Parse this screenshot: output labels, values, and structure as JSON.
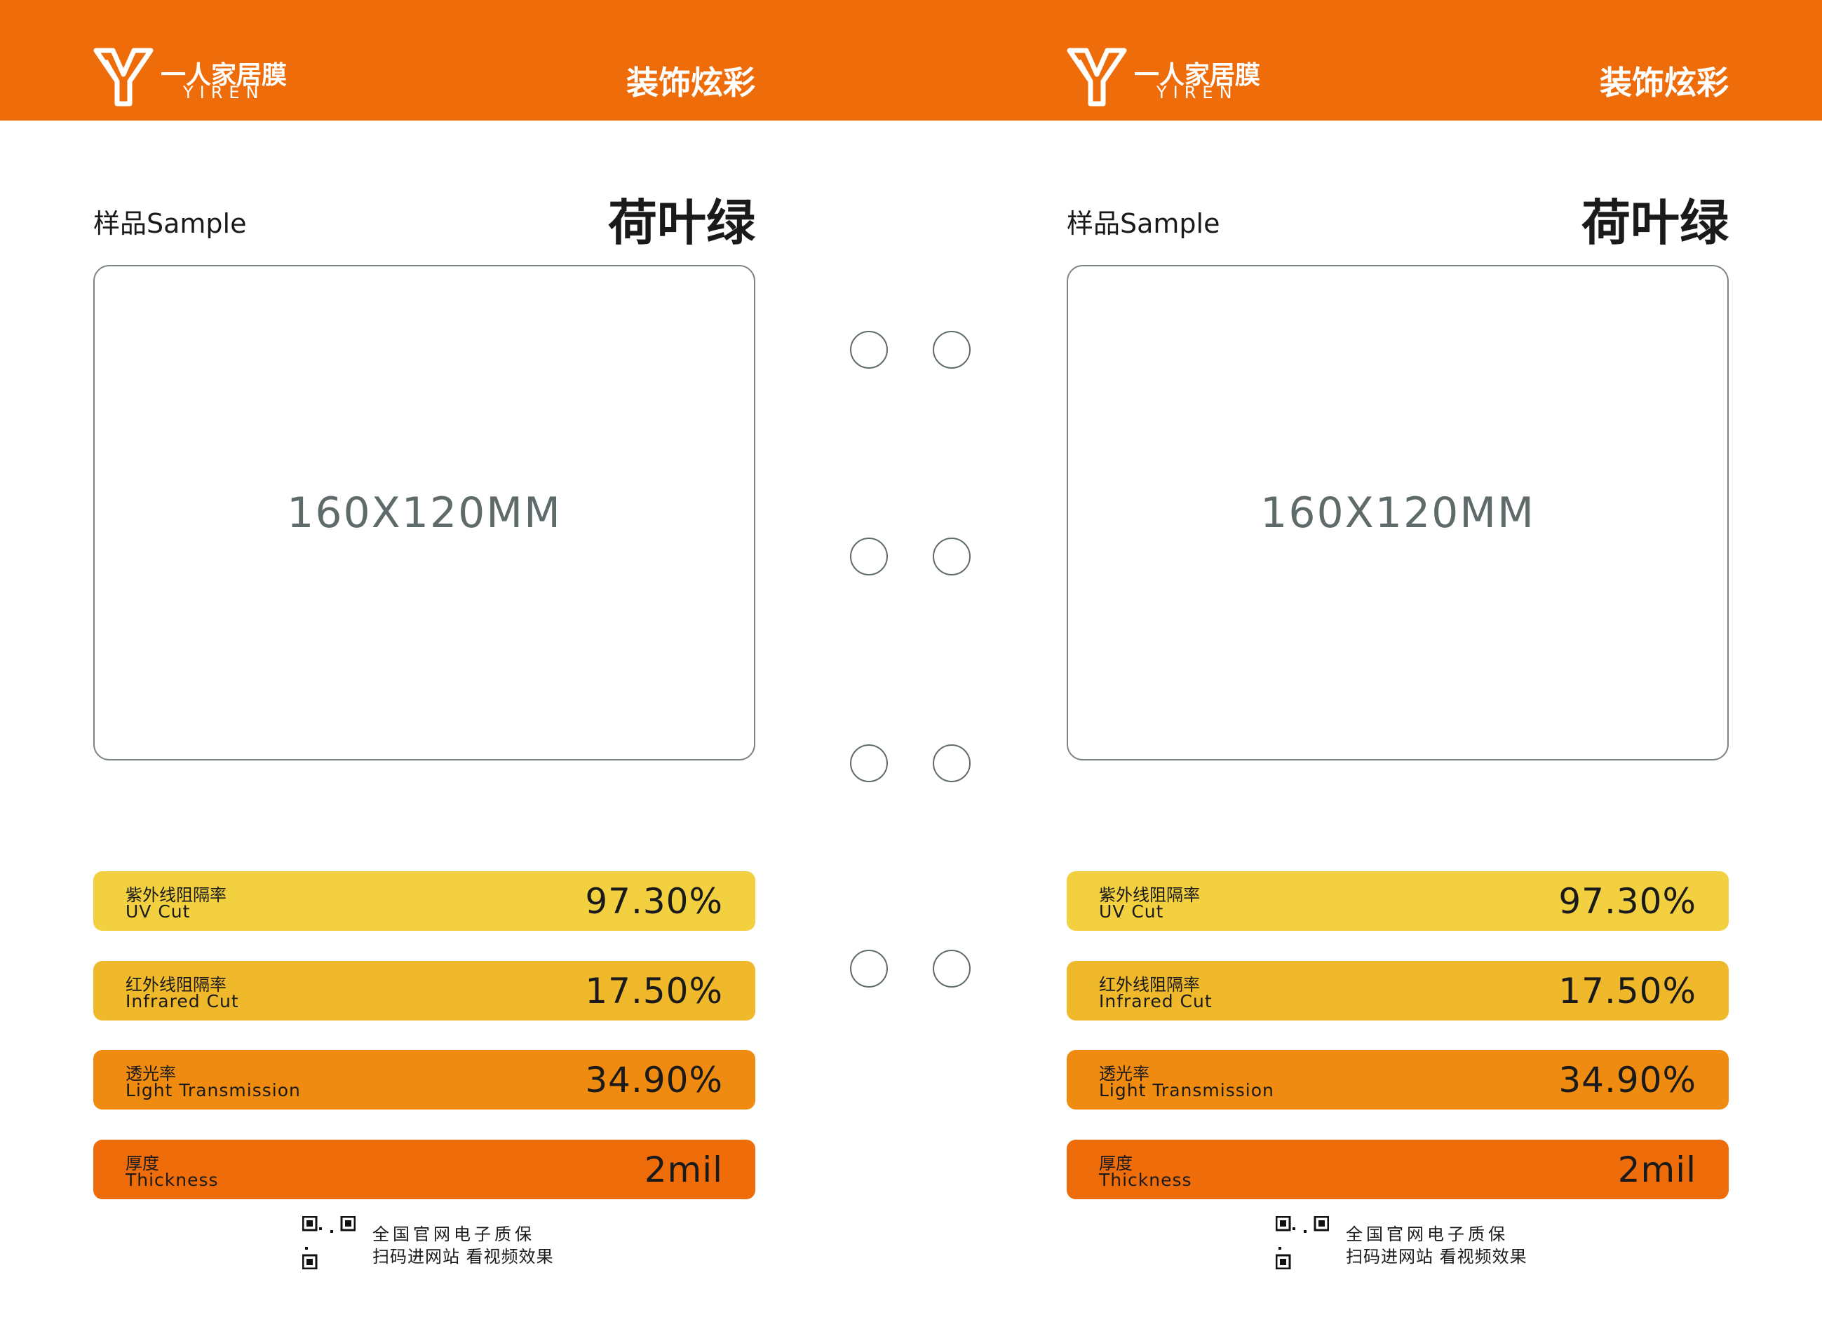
{
  "panels": [
    {
      "header": {
        "brand_cn": "一人家居膜",
        "brand_en": "YIREN",
        "tagline": "装饰炫彩"
      },
      "sample_label": "样品Sample",
      "color_name": "荷叶绿",
      "sample_size": "160X120MM",
      "specs": [
        {
          "label_cn": "紫外线阻隔率",
          "label_en": "UV Cut",
          "value": "97.30%"
        },
        {
          "label_cn": "红外线阻隔率",
          "label_en": "Infrared Cut",
          "value": "17.50%"
        },
        {
          "label_cn": "透光率",
          "label_en": "Light Transmission",
          "value": "34.90%"
        },
        {
          "label_cn": "厚度",
          "label_en": "Thickness",
          "value": "2mil"
        }
      ],
      "footer": {
        "line1": "全国官网电子质保",
        "line2": "扫码进网站 看视频效果"
      }
    },
    {
      "header": {
        "brand_cn": "一人家居膜",
        "brand_en": "YIREN",
        "tagline": "装饰炫彩"
      },
      "sample_label": "样品Sample",
      "color_name": "荷叶绿",
      "sample_size": "160X120MM",
      "specs": [
        {
          "label_cn": "紫外线阻隔率",
          "label_en": "UV Cut",
          "value": "97.30%"
        },
        {
          "label_cn": "红外线阻隔率",
          "label_en": "Infrared Cut",
          "value": "17.50%"
        },
        {
          "label_cn": "透光率",
          "label_en": "Light Transmission",
          "value": "34.90%"
        },
        {
          "label_cn": "厚度",
          "label_en": "Thickness",
          "value": "2mil"
        }
      ],
      "footer": {
        "line1": "全国官网电子质保",
        "line2": "扫码进网站 看视频效果"
      }
    }
  ]
}
